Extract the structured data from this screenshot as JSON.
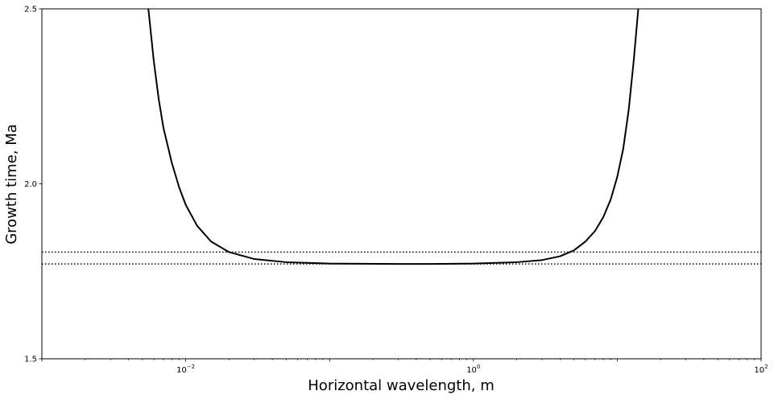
{
  "chart_data": {
    "type": "line",
    "title": "",
    "xlabel": "Horizontal wavelength, m",
    "ylabel": "Growth time, Ma",
    "x_scale": "log",
    "xlim": [
      0.001,
      100
    ],
    "ylim": [
      1.5,
      2.5
    ],
    "grid": false,
    "x_major_ticks": [
      {
        "value": 0.01,
        "base": "10",
        "exp": "−2"
      },
      {
        "value": 1,
        "base": "10",
        "exp": "0"
      },
      {
        "value": 100,
        "base": "10",
        "exp": "2"
      }
    ],
    "y_ticks": [
      {
        "value": 1.5,
        "label": "1.5"
      },
      {
        "value": 2.0,
        "label": "2.0"
      },
      {
        "value": 2.5,
        "label": "2.5"
      }
    ],
    "series": [
      {
        "style": "solid",
        "color": "#000000",
        "points": [
          [
            0.0055,
            2.5
          ],
          [
            0.006,
            2.35
          ],
          [
            0.0065,
            2.24
          ],
          [
            0.007,
            2.16
          ],
          [
            0.008,
            2.06
          ],
          [
            0.009,
            1.99
          ],
          [
            0.01,
            1.94
          ],
          [
            0.012,
            1.88
          ],
          [
            0.015,
            1.835
          ],
          [
            0.02,
            1.805
          ],
          [
            0.03,
            1.785
          ],
          [
            0.05,
            1.776
          ],
          [
            0.1,
            1.772
          ],
          [
            0.3,
            1.771
          ],
          [
            0.5,
            1.771
          ],
          [
            1.0,
            1.772
          ],
          [
            2.0,
            1.776
          ],
          [
            3.0,
            1.782
          ],
          [
            4.0,
            1.793
          ],
          [
            5.0,
            1.81
          ],
          [
            6.0,
            1.835
          ],
          [
            7.0,
            1.865
          ],
          [
            8.0,
            1.905
          ],
          [
            9.0,
            1.955
          ],
          [
            10.0,
            2.02
          ],
          [
            11.0,
            2.1
          ],
          [
            12.0,
            2.21
          ],
          [
            13.0,
            2.35
          ],
          [
            14.0,
            2.5
          ]
        ]
      }
    ],
    "hlines": [
      {
        "y": 1.805,
        "style": "dotted",
        "color": "#000000"
      },
      {
        "y": 1.771,
        "style": "dotted",
        "color": "#000000"
      }
    ]
  }
}
